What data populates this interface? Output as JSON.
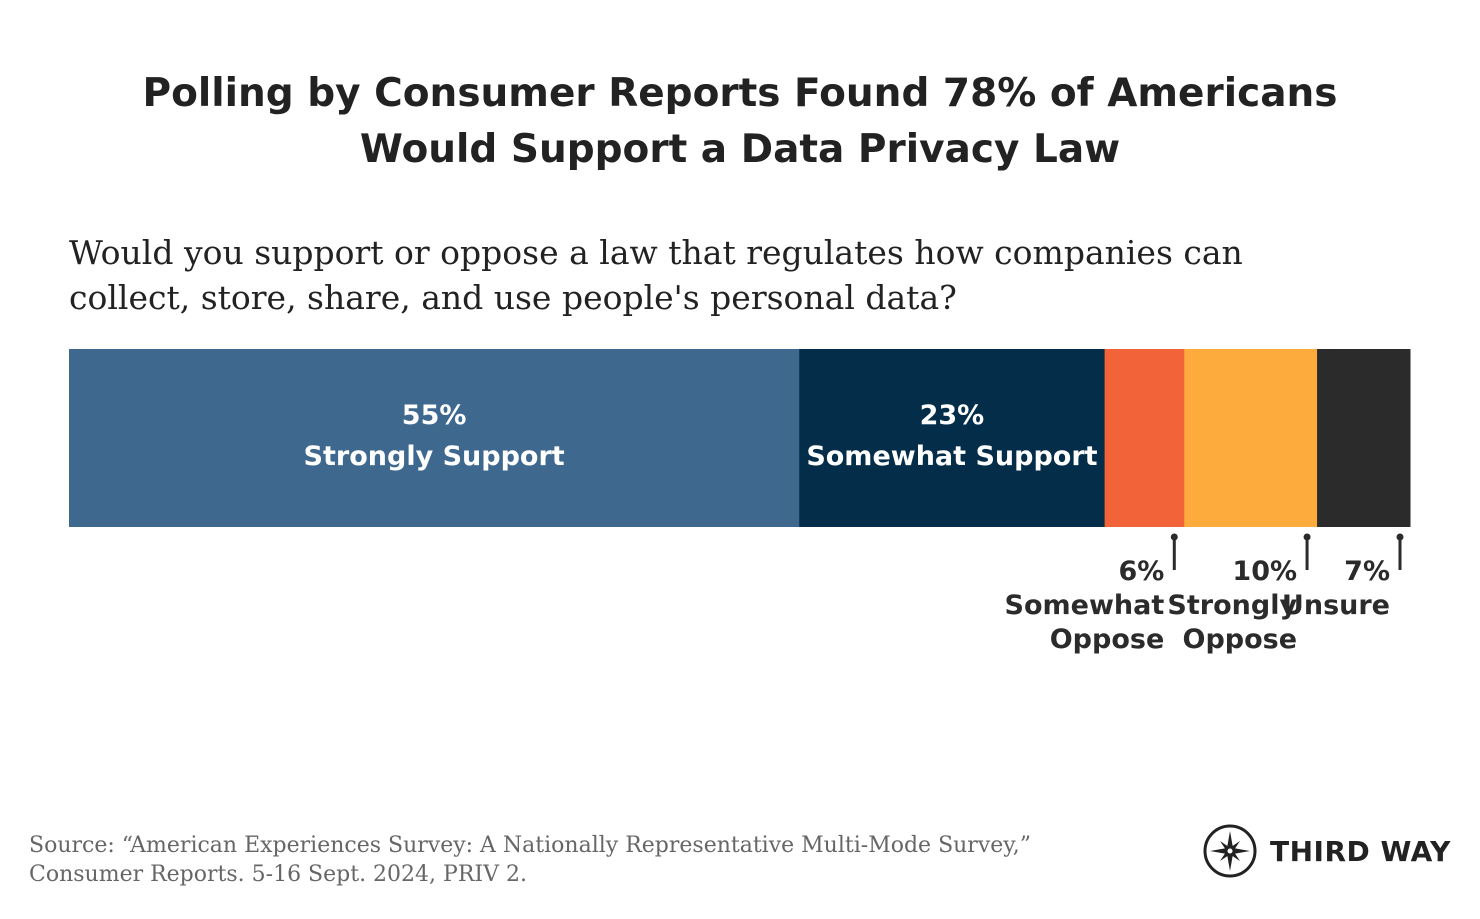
{
  "title_lines": [
    "Polling by Consumer Reports Found 78% of Americans",
    "Would Support a Data Privacy Law"
  ],
  "question_lines": [
    "Would you support or oppose a law that regulates how companies can",
    "collect, store, share, and use people's personal data?"
  ],
  "source_lines": [
    "Source: “American Experiences Survey: A Nationally Representative Multi-Mode Survey,”",
    "Consumer Reports. 5-16 Sept. 2024, PRIV 2."
  ],
  "logo": {
    "text": "THIRD WAY",
    "icon": "compass-star-icon"
  },
  "chart_data": {
    "type": "bar",
    "orientation": "horizontal-stacked",
    "categories": [
      "Strongly Support",
      "Somewhat Support",
      "Somewhat Oppose",
      "Strongly Oppose",
      "Unsure"
    ],
    "values": [
      55,
      23,
      6,
      10,
      7
    ],
    "labels": [
      {
        "value": "55%",
        "lines": [
          "Strongly Support"
        ],
        "position": "inside"
      },
      {
        "value": "23%",
        "lines": [
          "Somewhat Support"
        ],
        "position": "inside"
      },
      {
        "value": "6%",
        "lines": [
          "Somewhat",
          "Oppose"
        ],
        "position": "below"
      },
      {
        "value": "10%",
        "lines": [
          "Strongly",
          "Oppose"
        ],
        "position": "below"
      },
      {
        "value": "7%",
        "lines": [
          "Unsure"
        ],
        "position": "below"
      }
    ],
    "colors": [
      "#3f688f",
      "#042d4a",
      "#f2633a",
      "#fdab3c",
      "#2b2b2b"
    ]
  }
}
